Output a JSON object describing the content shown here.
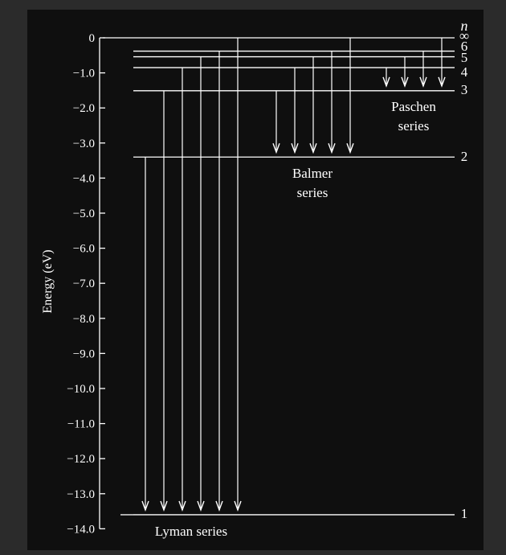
{
  "axis": {
    "label": "Energy (eV)",
    "ticks": [
      {
        "label": "0",
        "value": 0
      },
      {
        "label": "−1.0",
        "value": -1.0
      },
      {
        "label": "−2.0",
        "value": -2.0
      },
      {
        "label": "−3.0",
        "value": -3.0
      },
      {
        "label": "−4.0",
        "value": -4.0
      },
      {
        "label": "−5.0",
        "value": -5.0
      },
      {
        "label": "−6.0",
        "value": -6.0
      },
      {
        "label": "−7.0",
        "value": -7.0
      },
      {
        "label": "−8.0",
        "value": -8.0
      },
      {
        "label": "−9.0",
        "value": -9.0
      },
      {
        "label": "−10.0",
        "value": -10.0
      },
      {
        "label": "−11.0",
        "value": -11.0
      },
      {
        "label": "−12.0",
        "value": -12.0
      },
      {
        "label": "−13.0",
        "value": -13.0
      },
      {
        "label": "−14.0",
        "value": -14.0
      }
    ]
  },
  "n_label": "n",
  "levels": [
    {
      "n": "∞",
      "energy": 0
    },
    {
      "n": "6",
      "energy": -0.38
    },
    {
      "n": "5",
      "energy": -0.54
    },
    {
      "n": "4",
      "energy": -0.85
    },
    {
      "n": "3",
      "energy": -1.51
    },
    {
      "n": "2",
      "energy": -3.4
    },
    {
      "n": "1",
      "energy": -13.6
    }
  ],
  "series": [
    {
      "name": "Lyman series",
      "to": "1",
      "from": [
        "2",
        "3",
        "4",
        "5",
        "6",
        "∞"
      ]
    },
    {
      "name": "Balmer series",
      "to": "2",
      "from": [
        "3",
        "4",
        "5",
        "6",
        "∞"
      ]
    },
    {
      "name": "Paschen series",
      "to": "3",
      "from": [
        "4",
        "5",
        "6",
        "∞"
      ]
    }
  ],
  "labels": {
    "lyman": "Lyman series",
    "balmer_line1": "Balmer",
    "balmer_line2": "series",
    "paschen_line1": "Paschen",
    "paschen_line2": "series"
  },
  "colors": {
    "background": "#0f0f0f",
    "lines": "#ffffff",
    "text": "#ffffff"
  }
}
